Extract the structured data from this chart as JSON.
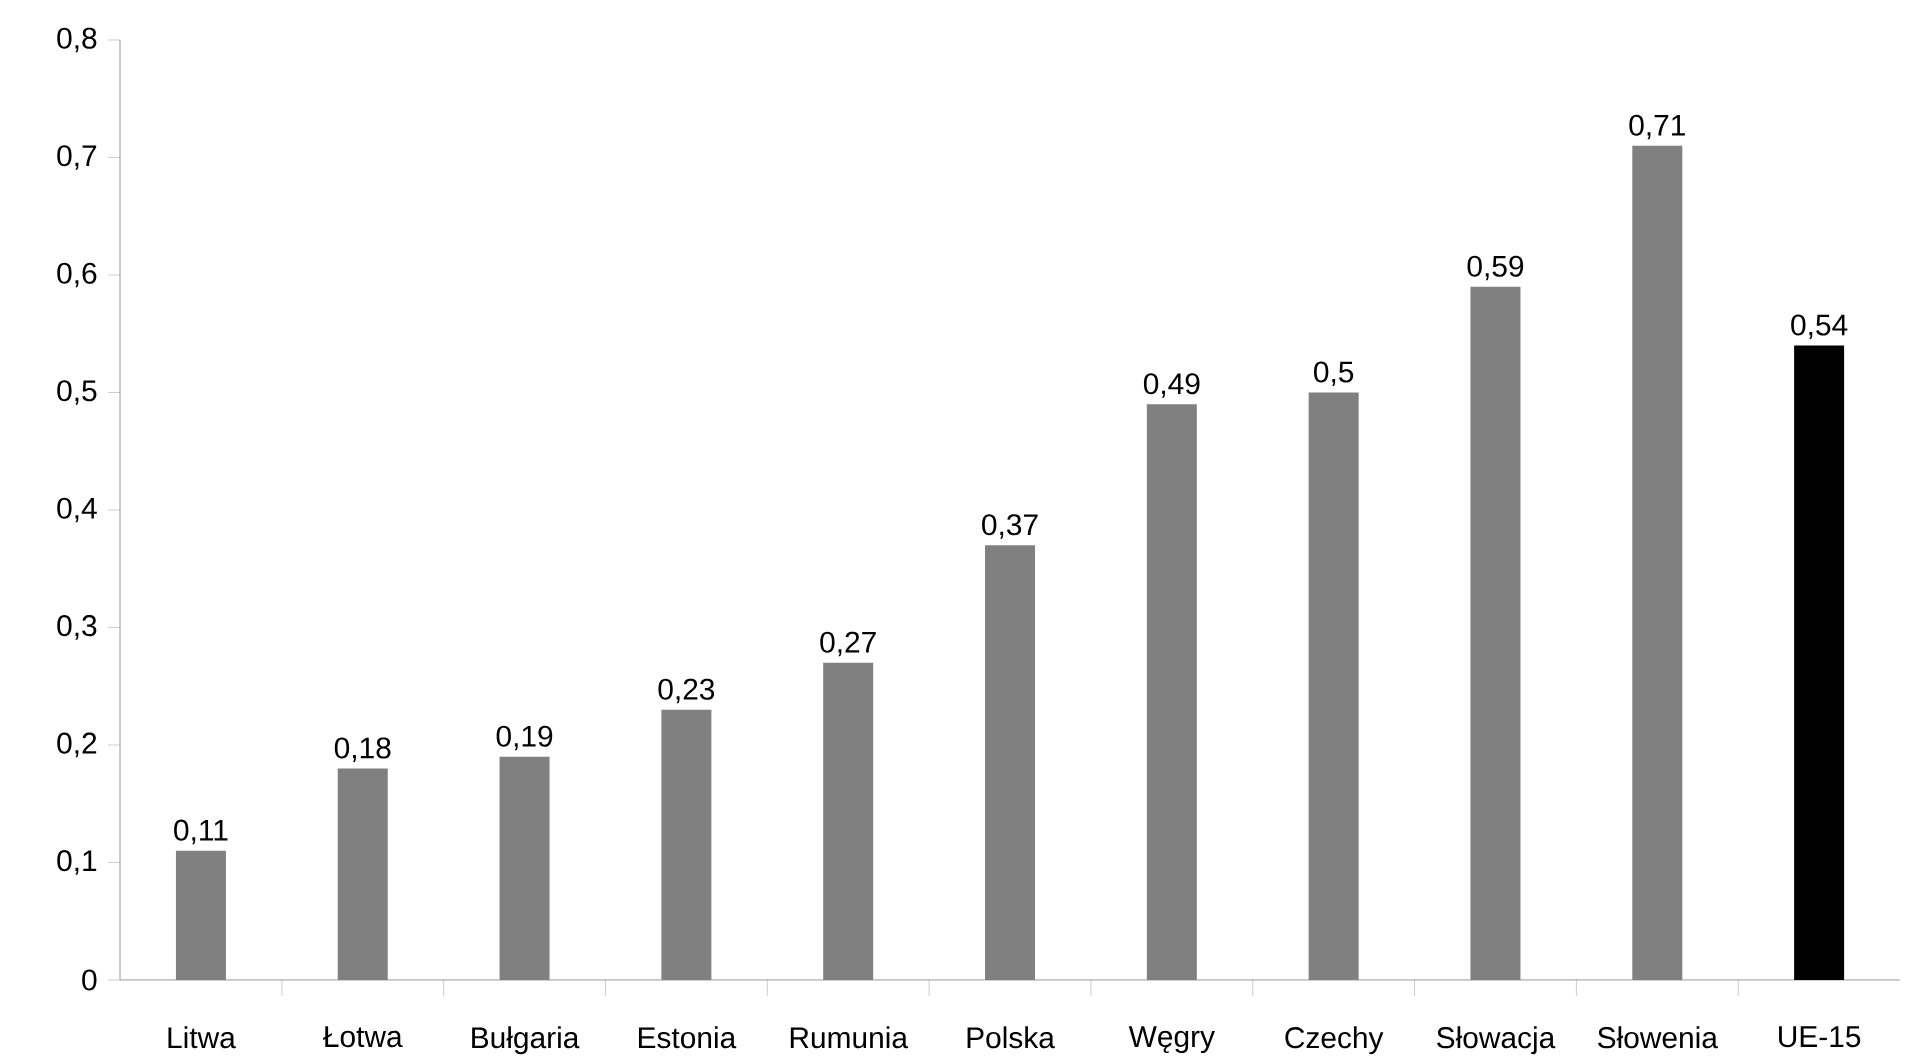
{
  "chart_data": {
    "type": "bar",
    "categories": [
      "Litwa",
      "Łotwa",
      "Bułgaria",
      "Estonia",
      "Rumunia",
      "Polska",
      "Węgry",
      "Czechy",
      "Słowacja",
      "Słowenia",
      "UE-15"
    ],
    "values": [
      0.11,
      0.18,
      0.19,
      0.23,
      0.27,
      0.37,
      0.49,
      0.5,
      0.59,
      0.71,
      0.54
    ],
    "value_labels": [
      "0,11",
      "0,18",
      "0,19",
      "0,23",
      "0,27",
      "0,37",
      "0,49",
      "0,5",
      "0,59",
      "0,71",
      "0,54"
    ],
    "colors": [
      "#808080",
      "#808080",
      "#808080",
      "#808080",
      "#808080",
      "#808080",
      "#808080",
      "#808080",
      "#808080",
      "#808080",
      "#000000"
    ],
    "ylim": [
      0,
      0.8
    ],
    "yticks": [
      0,
      {
        "value": 0.1,
        "label": "0,1"
      },
      {
        "value": 0.2,
        "label": "0,2"
      },
      {
        "value": 0.3,
        "label": "0,3"
      },
      {
        "value": 0.4,
        "label": "0,4"
      },
      {
        "value": 0.5,
        "label": "0,5"
      },
      {
        "value": 0.6,
        "label": "0,6"
      },
      {
        "value": 0.7,
        "label": "0,7"
      },
      {
        "value": 0.8,
        "label": "0,8"
      }
    ],
    "grid": false
  }
}
